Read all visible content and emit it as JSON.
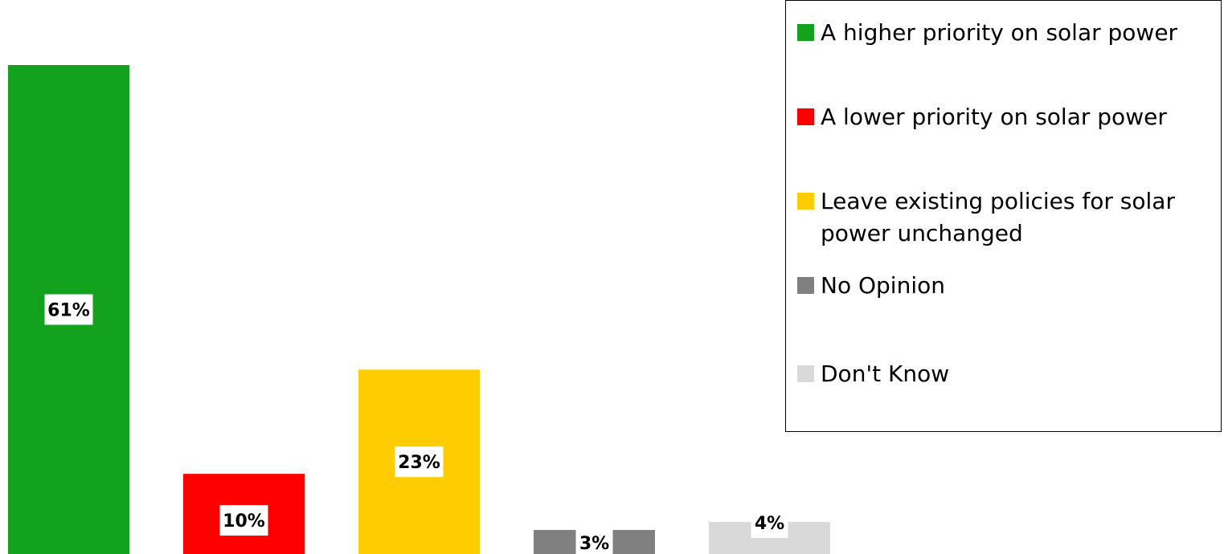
{
  "chart_data": {
    "type": "bar",
    "categories": [
      "A higher priority on solar power",
      "A lower priority on solar power",
      "Leave existing policies for solar power unchanged",
      "No Opinion",
      "Don't Know"
    ],
    "values": [
      61,
      10,
      23,
      3,
      4
    ],
    "data_labels": [
      "61%",
      "10%",
      "23%",
      "3%",
      "4%"
    ],
    "colors": [
      "#12a21e",
      "#ff0000",
      "#ffcc00",
      "#808080",
      "#d9d9d9"
    ],
    "ylim": [
      0,
      65
    ],
    "grid": false,
    "axes_visible": false,
    "legend_position": "top-right",
    "legend": [
      {
        "label": "A higher priority on solar power",
        "color": "#12a21e"
      },
      {
        "label": "A lower priority on solar power",
        "color": "#ff0000"
      },
      {
        "label": "Leave existing policies for solar power unchanged",
        "color": "#ffcc00"
      },
      {
        "label": "No Opinion",
        "color": "#808080"
      },
      {
        "label": "Don't Know",
        "color": "#d9d9d9"
      }
    ]
  }
}
